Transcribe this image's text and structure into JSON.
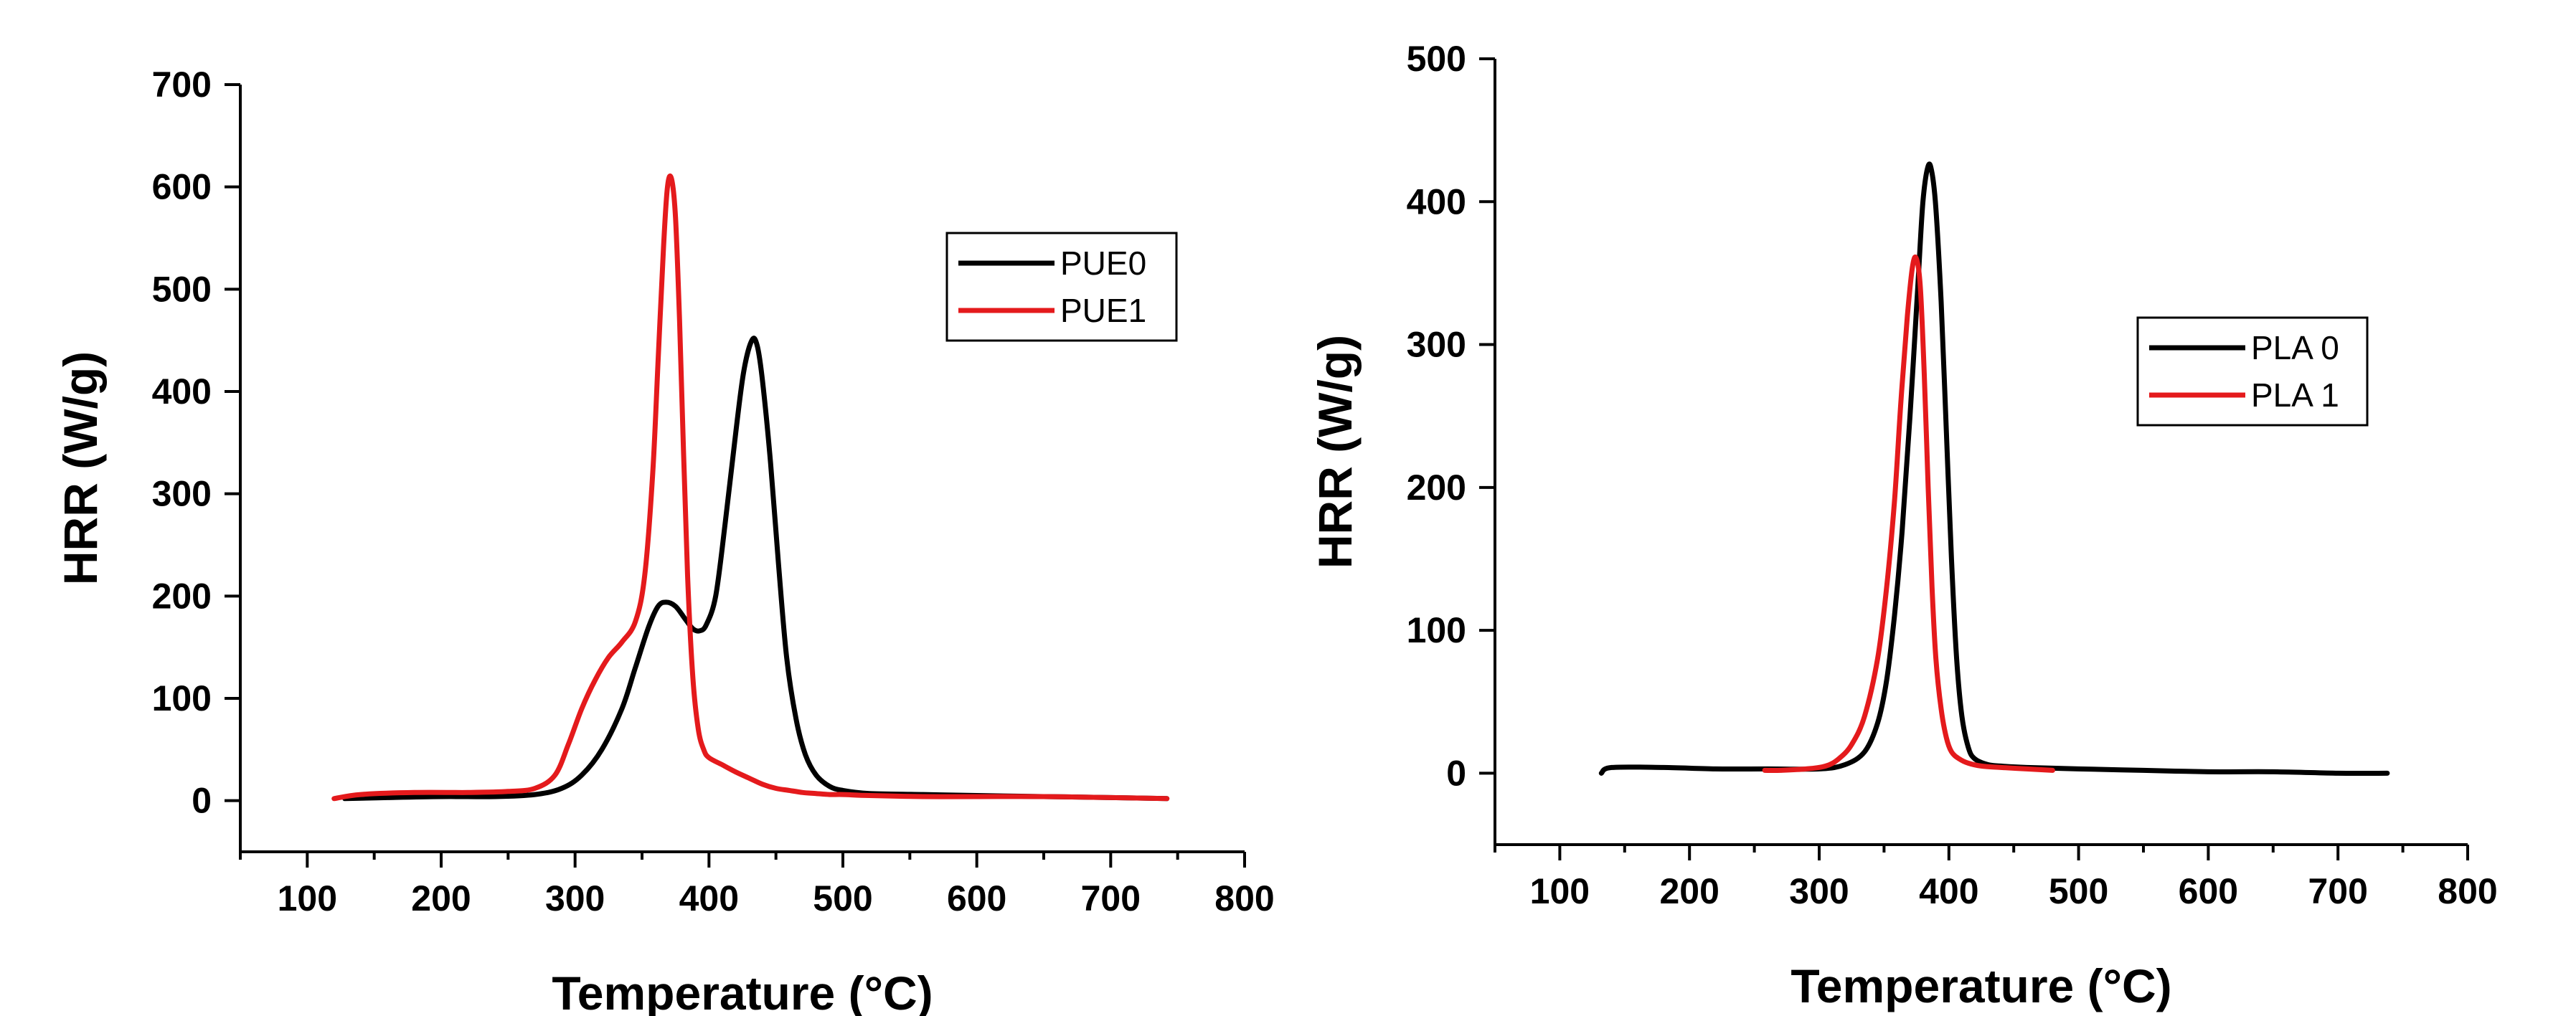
{
  "chart_data": [
    {
      "type": "line",
      "title": "",
      "xlabel": "Temperature (°C)",
      "ylabel": "HRR (W/g)",
      "xlim": [
        50,
        800
      ],
      "ylim": [
        -50,
        700
      ],
      "xticks": [
        100,
        200,
        300,
        400,
        500,
        600,
        700,
        800
      ],
      "yticks": [
        0,
        100,
        200,
        300,
        400,
        500,
        600,
        700
      ],
      "legend_position": "top-right",
      "series": [
        {
          "name": "PUE0",
          "color": "#000000",
          "x": [
            128,
            160,
            200,
            240,
            270,
            290,
            305,
            320,
            335,
            345,
            355,
            362,
            368,
            375,
            382,
            388,
            393,
            398,
            405,
            412,
            420,
            426,
            432,
            436,
            440,
            446,
            452,
            458,
            465,
            472,
            480,
            490,
            500,
            520,
            560,
            600,
            650,
            700,
            742
          ],
          "y": [
            2,
            3,
            4,
            4,
            6,
            12,
            25,
            50,
            90,
            130,
            170,
            190,
            194,
            190,
            178,
            168,
            166,
            172,
            200,
            270,
            360,
            420,
            450,
            445,
            410,
            330,
            230,
            140,
            80,
            45,
            25,
            14,
            10,
            7,
            6,
            5,
            4,
            3,
            2
          ]
        },
        {
          "name": "PUE1",
          "color": "#e41a1c",
          "x": [
            120,
            140,
            180,
            220,
            250,
            270,
            285,
            295,
            305,
            315,
            325,
            335,
            345,
            352,
            358,
            362,
            366,
            369,
            372,
            375,
            378,
            381,
            384,
            388,
            392,
            396,
            400,
            410,
            420,
            430,
            440,
            450,
            460,
            470,
            480,
            490,
            500,
            520,
            560,
            600,
            650,
            700,
            742
          ],
          "y": [
            2,
            6,
            8,
            8,
            9,
            12,
            25,
            55,
            90,
            118,
            140,
            155,
            175,
            220,
            320,
            430,
            540,
            600,
            608,
            570,
            470,
            340,
            220,
            120,
            70,
            50,
            42,
            35,
            28,
            22,
            16,
            12,
            10,
            8,
            7,
            6,
            6,
            5,
            4,
            4,
            4,
            3,
            2
          ]
        }
      ]
    },
    {
      "type": "line",
      "title": "",
      "xlabel": "Temperature (°C)",
      "ylabel": "HRR (W/g)",
      "xlim": [
        50,
        800
      ],
      "ylim": [
        -50,
        500
      ],
      "xticks": [
        100,
        200,
        300,
        400,
        500,
        600,
        700,
        800
      ],
      "yticks": [
        0,
        100,
        200,
        300,
        400,
        500
      ],
      "legend_position": "right",
      "series": [
        {
          "name": "PLA 0",
          "color": "#000000",
          "x": [
            132,
            140,
            180,
            220,
            260,
            300,
            320,
            335,
            345,
            352,
            358,
            364,
            370,
            376,
            380,
            384,
            387,
            390,
            394,
            398,
            402,
            406,
            410,
            415,
            420,
            430,
            440,
            460,
            500,
            550,
            600,
            650,
            700,
            738
          ],
          "y": [
            0,
            4,
            4,
            3,
            3,
            3,
            6,
            15,
            35,
            65,
            110,
            170,
            250,
            340,
            400,
            425,
            420,
            395,
            330,
            240,
            150,
            80,
            40,
            18,
            10,
            6,
            5,
            4,
            3,
            2,
            1,
            1,
            0,
            0
          ],
          "draw_range": [
            132,
            738
          ]
        },
        {
          "name": "PLA 1",
          "color": "#e41a1c",
          "x": [
            258,
            270,
            290,
            305,
            315,
            325,
            335,
            345,
            352,
            358,
            363,
            368,
            372,
            375,
            378,
            381,
            384,
            387,
            390,
            394,
            398,
            402,
            408,
            415,
            425,
            440,
            460,
            480
          ],
          "y": [
            2,
            2,
            3,
            5,
            10,
            20,
            40,
            80,
            130,
            190,
            260,
            320,
            355,
            360,
            340,
            280,
            200,
            130,
            80,
            45,
            25,
            15,
            10,
            7,
            5,
            4,
            3,
            2
          ]
        }
      ]
    }
  ]
}
